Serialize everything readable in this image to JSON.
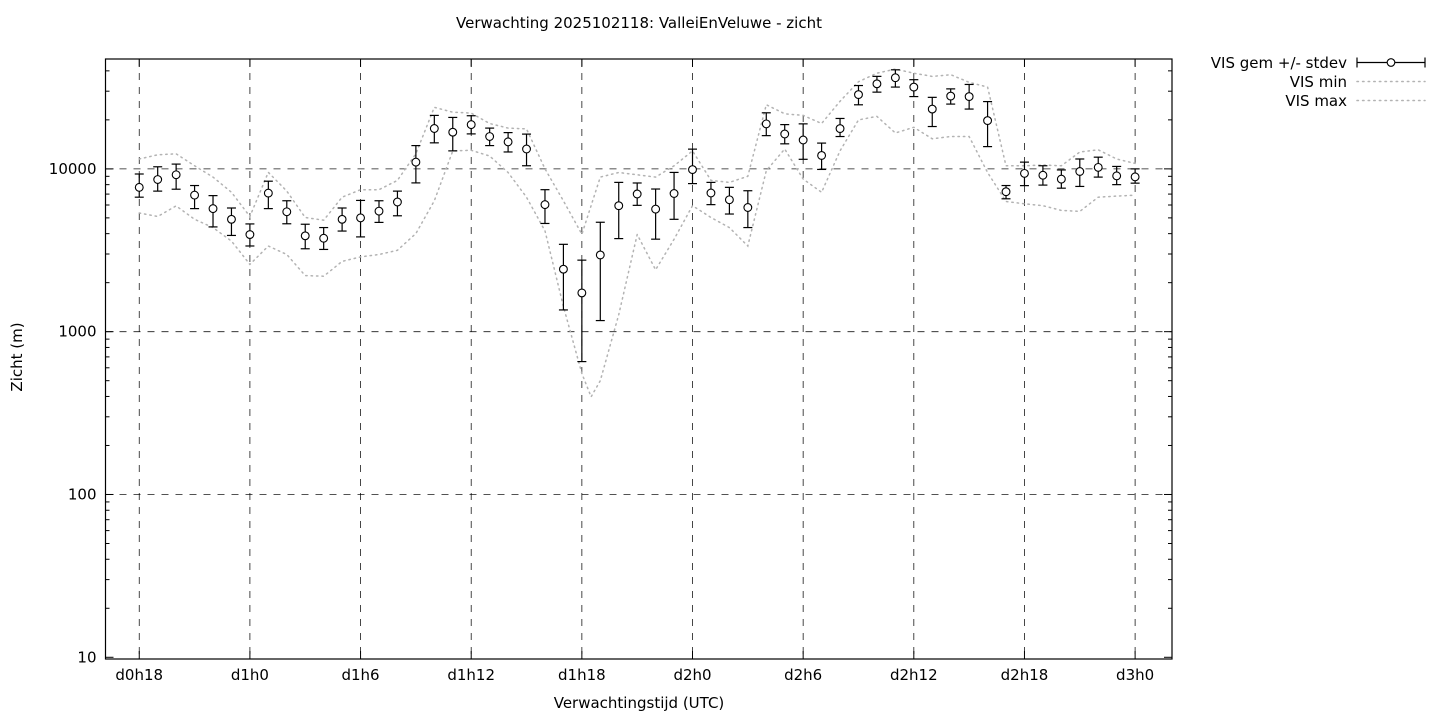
{
  "title": "Verwachting 2025102118: ValleiEnVeluwe - zicht",
  "axes": {
    "xlabel": "Verwachtingstijd (UTC)",
    "ylabel": "Zicht (m)"
  },
  "legend": {
    "items": [
      {
        "label": "VIS gem +/- stdev",
        "type": "errorbar"
      },
      {
        "label": "VIS min",
        "type": "dotted"
      },
      {
        "label": "VIS max",
        "type": "dotted"
      }
    ]
  },
  "colors": {
    "errorbar": "#000000",
    "minmax": "#b3b3b3",
    "grid": "#000000",
    "background": "#ffffff"
  },
  "chart_data": {
    "type": "line",
    "subtype": "points-with-errorbars-plus-min-max-envelope",
    "title": "Verwachting 2025102118: ValleiEnVeluwe - zicht",
    "xlabel": "Verwachtingstijd (UTC)",
    "ylabel": "Zicht (m)",
    "y_scale": "log10",
    "ylim": [
      9.76,
      47300
    ],
    "xlim_hours": [
      16.17,
      74.0
    ],
    "grid": true,
    "legend_position": "outside-top-right",
    "x_tick_hours": [
      18,
      24,
      30,
      36,
      42,
      48,
      54,
      60,
      66,
      72
    ],
    "x_tick_labels": [
      "d0h18",
      "d1h0",
      "d1h6",
      "d1h12",
      "d1h18",
      "d2h0",
      "d2h6",
      "d2h12",
      "d2h18",
      "d3h0"
    ],
    "y_ticks": [
      {
        "value": 10,
        "label": "10"
      },
      {
        "value": 100,
        "label": "100"
      },
      {
        "value": 1000,
        "label": "1000"
      },
      {
        "value": 10000,
        "label": "10000"
      }
    ],
    "series": [
      {
        "name": "VIS gem +/- stdev",
        "style": "errorbars",
        "color": "#000000",
        "points": [
          {
            "h": 18,
            "mean": 7700,
            "lo": 6700,
            "hi": 9300
          },
          {
            "h": 19,
            "mean": 8600,
            "lo": 7300,
            "hi": 10300
          },
          {
            "h": 20,
            "mean": 9200,
            "lo": 7500,
            "hi": 10700
          },
          {
            "h": 21,
            "mean": 6900,
            "lo": 5700,
            "hi": 7900
          },
          {
            "h": 22,
            "mean": 5700,
            "lo": 4400,
            "hi": 6850
          },
          {
            "h": 23,
            "mean": 4900,
            "lo": 3900,
            "hi": 5750
          },
          {
            "h": 24,
            "mean": 3950,
            "lo": 3360,
            "hi": 4590
          },
          {
            "h": 25,
            "mean": 7100,
            "lo": 5700,
            "hi": 8400
          },
          {
            "h": 26,
            "mean": 5450,
            "lo": 4600,
            "hi": 6370
          },
          {
            "h": 27,
            "mean": 3880,
            "lo": 3230,
            "hi": 4570
          },
          {
            "h": 28,
            "mean": 3750,
            "lo": 3200,
            "hi": 4360
          },
          {
            "h": 29,
            "mean": 4900,
            "lo": 4150,
            "hi": 5750
          },
          {
            "h": 30,
            "mean": 5000,
            "lo": 3820,
            "hi": 6400
          },
          {
            "h": 31,
            "mean": 5500,
            "lo": 4690,
            "hi": 6370
          },
          {
            "h": 32,
            "mean": 6260,
            "lo": 5150,
            "hi": 7300
          },
          {
            "h": 33,
            "mean": 11000,
            "lo": 8200,
            "hi": 13900
          },
          {
            "h": 34,
            "mean": 17700,
            "lo": 14450,
            "hi": 21300
          },
          {
            "h": 35,
            "mean": 16800,
            "lo": 12900,
            "hi": 20700
          },
          {
            "h": 36,
            "mean": 18700,
            "lo": 16400,
            "hi": 21200
          },
          {
            "h": 37,
            "mean": 15800,
            "lo": 13900,
            "hi": 17800
          },
          {
            "h": 38,
            "mean": 14650,
            "lo": 12700,
            "hi": 16700
          },
          {
            "h": 39,
            "mean": 13250,
            "lo": 10450,
            "hi": 16350
          },
          {
            "h": 40,
            "mean": 6030,
            "lo": 4620,
            "hi": 7450
          },
          {
            "h": 41,
            "mean": 2420,
            "lo": 1360,
            "hi": 3440
          },
          {
            "h": 42,
            "mean": 1730,
            "lo": 655,
            "hi": 2750
          },
          {
            "h": 43,
            "mean": 2960,
            "lo": 1170,
            "hi": 4700
          },
          {
            "h": 44,
            "mean": 5940,
            "lo": 3730,
            "hi": 8260
          },
          {
            "h": 45,
            "mean": 7010,
            "lo": 5970,
            "hi": 8190
          },
          {
            "h": 46,
            "mean": 5660,
            "lo": 3700,
            "hi": 7520
          },
          {
            "h": 47,
            "mean": 7060,
            "lo": 4900,
            "hi": 9510
          },
          {
            "h": 48,
            "mean": 9900,
            "lo": 8120,
            "hi": 13220
          },
          {
            "h": 49,
            "mean": 7110,
            "lo": 6030,
            "hi": 8260
          },
          {
            "h": 50,
            "mean": 6460,
            "lo": 5280,
            "hi": 7700
          },
          {
            "h": 51,
            "mean": 5790,
            "lo": 4360,
            "hi": 7340
          },
          {
            "h": 52,
            "mean": 18890,
            "lo": 16000,
            "hi": 22100
          },
          {
            "h": 53,
            "mean": 16380,
            "lo": 14250,
            "hi": 18700
          },
          {
            "h": 54,
            "mean": 15050,
            "lo": 11450,
            "hi": 18900
          },
          {
            "h": 55,
            "mean": 12090,
            "lo": 9920,
            "hi": 14400
          },
          {
            "h": 56,
            "mean": 17680,
            "lo": 15800,
            "hi": 20400
          },
          {
            "h": 57,
            "mean": 28600,
            "lo": 24750,
            "hi": 32500
          },
          {
            "h": 58,
            "mean": 33300,
            "lo": 29600,
            "hi": 37000
          },
          {
            "h": 59,
            "mean": 36300,
            "lo": 31800,
            "hi": 40600
          },
          {
            "h": 60,
            "mean": 31800,
            "lo": 27800,
            "hi": 35300
          },
          {
            "h": 61,
            "mean": 23300,
            "lo": 18200,
            "hi": 27500
          },
          {
            "h": 62,
            "mean": 28000,
            "lo": 25000,
            "hi": 31000
          },
          {
            "h": 63,
            "mean": 27800,
            "lo": 23300,
            "hi": 33000
          },
          {
            "h": 64,
            "mean": 19800,
            "lo": 13700,
            "hi": 25900
          },
          {
            "h": 65,
            "mean": 7240,
            "lo": 6550,
            "hi": 7900
          },
          {
            "h": 66,
            "mean": 9380,
            "lo": 7890,
            "hi": 11000
          },
          {
            "h": 67,
            "mean": 9140,
            "lo": 7950,
            "hi": 10450
          },
          {
            "h": 68,
            "mean": 8650,
            "lo": 7610,
            "hi": 9850
          },
          {
            "h": 69,
            "mean": 9640,
            "lo": 7800,
            "hi": 11500
          },
          {
            "h": 70,
            "mean": 10210,
            "lo": 8900,
            "hi": 11800
          },
          {
            "h": 71,
            "mean": 9060,
            "lo": 8000,
            "hi": 10350
          },
          {
            "h": 72,
            "mean": 8930,
            "lo": 8170,
            "hi": 10000
          }
        ]
      },
      {
        "name": "VIS min",
        "style": "dotted",
        "color": "#b3b3b3",
        "points": [
          [
            18,
            5360
          ],
          [
            19,
            5100
          ],
          [
            20,
            5920
          ],
          [
            21,
            4900
          ],
          [
            22,
            4360
          ],
          [
            23,
            3600
          ],
          [
            24,
            2590
          ],
          [
            25,
            3360
          ],
          [
            26,
            2980
          ],
          [
            27,
            2210
          ],
          [
            28,
            2190
          ],
          [
            29,
            2700
          ],
          [
            30,
            2880
          ],
          [
            31,
            2980
          ],
          [
            32,
            3160
          ],
          [
            33,
            4010
          ],
          [
            34,
            6370
          ],
          [
            35,
            12900
          ],
          [
            36,
            13000
          ],
          [
            37,
            12000
          ],
          [
            38,
            9500
          ],
          [
            39,
            6700
          ],
          [
            40,
            4160
          ],
          [
            41,
            1430
          ],
          [
            42,
            553
          ],
          [
            42.5,
            398
          ],
          [
            43,
            500
          ],
          [
            44,
            1270
          ],
          [
            45,
            3950
          ],
          [
            46,
            2400
          ],
          [
            47,
            3700
          ],
          [
            48,
            5940
          ],
          [
            49,
            5030
          ],
          [
            50,
            4360
          ],
          [
            51,
            3360
          ],
          [
            52,
            9750
          ],
          [
            53,
            13250
          ],
          [
            54,
            8650
          ],
          [
            55,
            7180
          ],
          [
            56,
            12900
          ],
          [
            57,
            20000
          ],
          [
            58,
            21000
          ],
          [
            59,
            16600
          ],
          [
            60,
            18000
          ],
          [
            61,
            15300
          ],
          [
            62,
            15800
          ],
          [
            63,
            15800
          ],
          [
            64,
            9500
          ],
          [
            65,
            6300
          ],
          [
            66,
            6100
          ],
          [
            67,
            5940
          ],
          [
            68,
            5560
          ],
          [
            69,
            5480
          ],
          [
            70,
            6700
          ],
          [
            71,
            6800
          ],
          [
            72,
            6890
          ]
        ]
      },
      {
        "name": "VIS max",
        "style": "dotted",
        "color": "#b3b3b3",
        "points": [
          [
            18,
            11500
          ],
          [
            19,
            12200
          ],
          [
            20,
            12380
          ],
          [
            21,
            10450
          ],
          [
            22,
            8900
          ],
          [
            23,
            7180
          ],
          [
            24,
            5100
          ],
          [
            25,
            9520
          ],
          [
            26,
            7300
          ],
          [
            27,
            5030
          ],
          [
            28,
            4840
          ],
          [
            29,
            6700
          ],
          [
            30,
            7450
          ],
          [
            31,
            7450
          ],
          [
            32,
            8500
          ],
          [
            33,
            12400
          ],
          [
            34,
            23900
          ],
          [
            35,
            22300
          ],
          [
            36,
            22000
          ],
          [
            37,
            19000
          ],
          [
            38,
            17800
          ],
          [
            39,
            17600
          ],
          [
            40,
            10000
          ],
          [
            41,
            6370
          ],
          [
            42,
            3970
          ],
          [
            43,
            8900
          ],
          [
            44,
            9500
          ],
          [
            45,
            9200
          ],
          [
            46,
            8900
          ],
          [
            47,
            10450
          ],
          [
            48,
            12900
          ],
          [
            49,
            8500
          ],
          [
            50,
            8260
          ],
          [
            51,
            9000
          ],
          [
            52,
            24800
          ],
          [
            53,
            21800
          ],
          [
            54,
            21300
          ],
          [
            55,
            19000
          ],
          [
            56,
            26000
          ],
          [
            57,
            34300
          ],
          [
            58,
            38700
          ],
          [
            59,
            41000
          ],
          [
            60,
            38700
          ],
          [
            61,
            37000
          ],
          [
            62,
            37900
          ],
          [
            63,
            34000
          ],
          [
            64,
            31800
          ],
          [
            65,
            10450
          ],
          [
            66,
            10450
          ],
          [
            67,
            10560
          ],
          [
            68,
            10450
          ],
          [
            69,
            12700
          ],
          [
            70,
            13100
          ],
          [
            71,
            11500
          ],
          [
            72,
            10800
          ]
        ]
      }
    ]
  }
}
